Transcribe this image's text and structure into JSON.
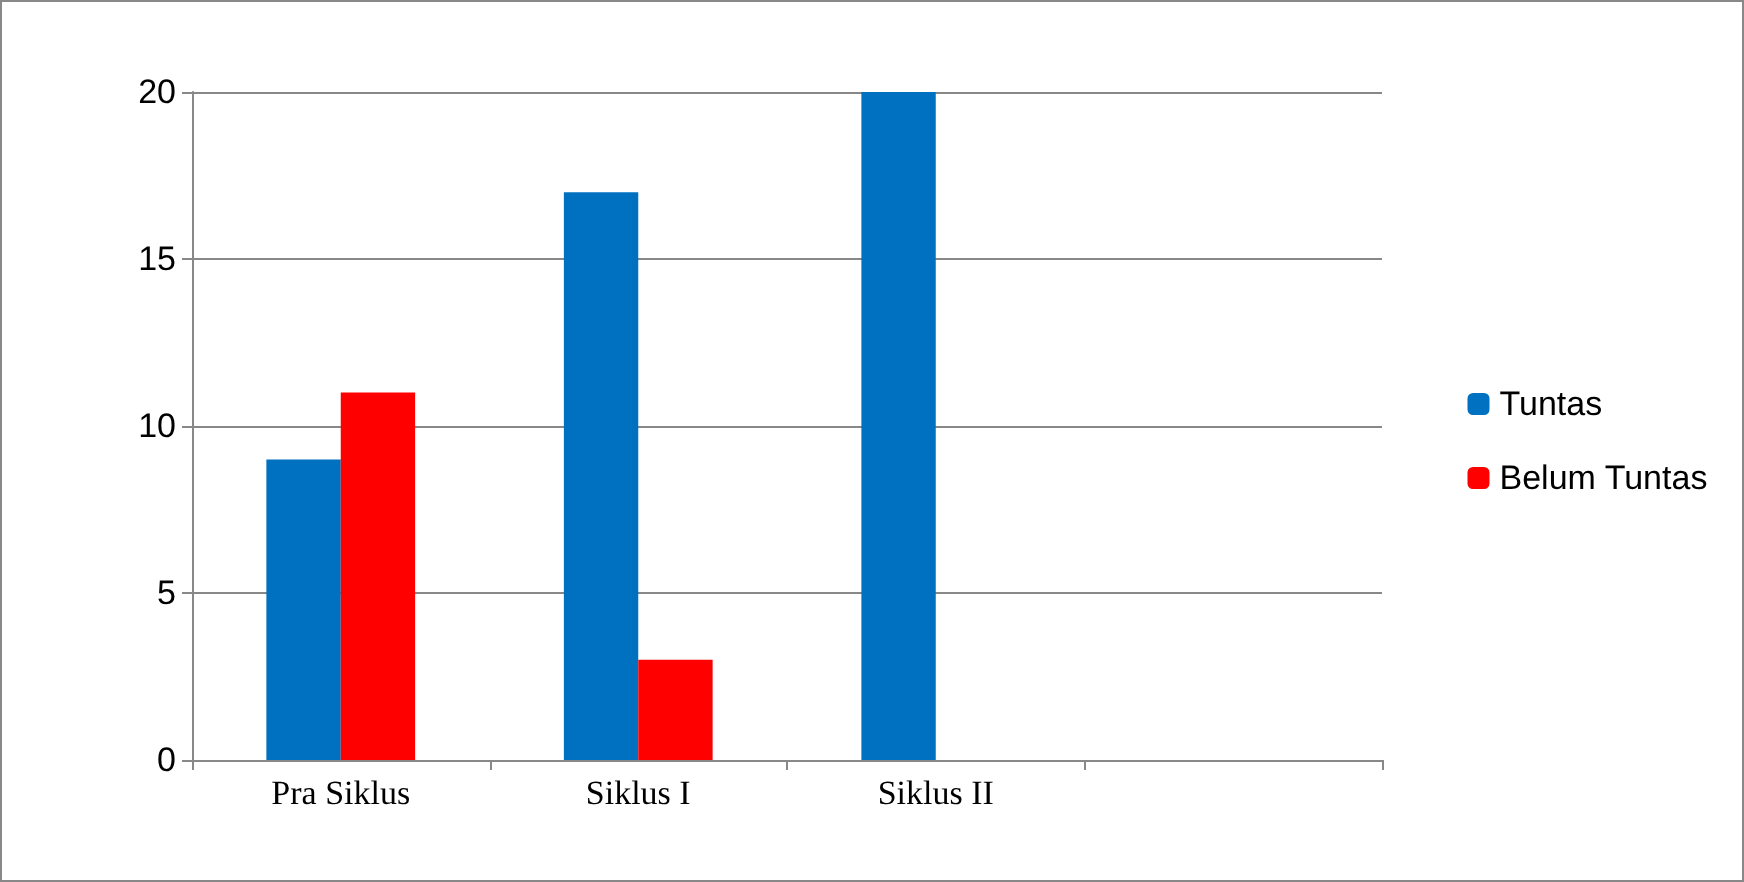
{
  "chart_data": {
    "type": "bar",
    "categories": [
      "Pra Siklus",
      "Siklus I",
      "Siklus II",
      null
    ],
    "series": [
      {
        "name": "Tuntas",
        "color": "#0070c0",
        "values": [
          9,
          17,
          20,
          null
        ]
      },
      {
        "name": "Belum Tuntas",
        "color": "#ff0000",
        "values": [
          11,
          3,
          0,
          null
        ]
      }
    ],
    "ylim": [
      0,
      20
    ],
    "yticks": [
      0,
      5,
      10,
      15,
      20
    ],
    "grid": "y",
    "legend": "right"
  }
}
